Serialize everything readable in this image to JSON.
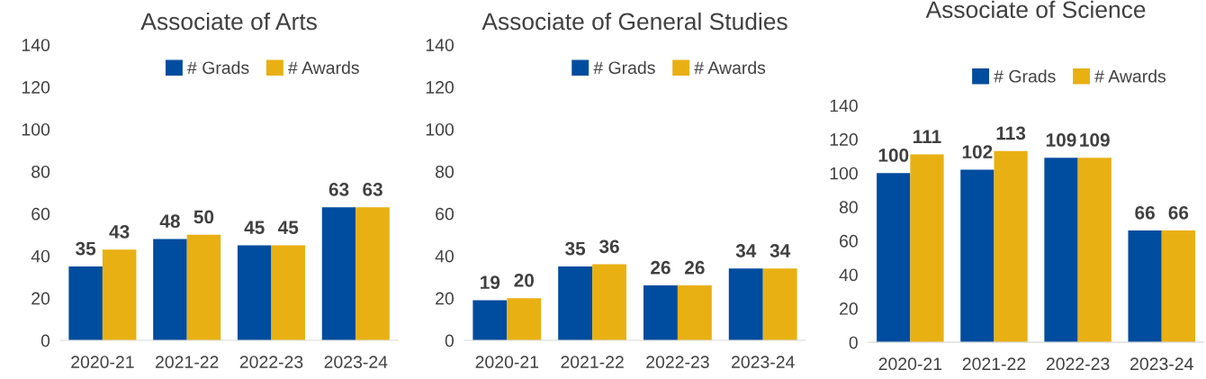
{
  "chart_data": [
    {
      "type": "bar",
      "title": "Associate of Arts",
      "categories": [
        "2020-21",
        "2021-22",
        "2022-23",
        "2023-24"
      ],
      "series": [
        {
          "name": "# Grads",
          "color": "#004c9e",
          "values": [
            35,
            48,
            45,
            63
          ]
        },
        {
          "name": "# Awards",
          "color": "#e8b013",
          "values": [
            43,
            50,
            45,
            63
          ]
        }
      ],
      "ylim": [
        0,
        140
      ],
      "yticks": [
        0,
        20,
        40,
        60,
        80,
        100,
        120,
        140
      ],
      "data_labels": true,
      "legend": "top",
      "grid": false
    },
    {
      "type": "bar",
      "title": "Associate of General Studies",
      "categories": [
        "2020-21",
        "2021-22",
        "2022-23",
        "2023-24"
      ],
      "series": [
        {
          "name": "# Grads",
          "color": "#004c9e",
          "values": [
            19,
            35,
            26,
            34
          ]
        },
        {
          "name": "# Awards",
          "color": "#e8b013",
          "values": [
            20,
            36,
            26,
            34
          ]
        }
      ],
      "ylim": [
        0,
        140
      ],
      "yticks": [
        0,
        20,
        40,
        60,
        80,
        100,
        120,
        140
      ],
      "data_labels": true,
      "legend": "top",
      "grid": false
    },
    {
      "type": "bar",
      "title": "Associate of Science",
      "categories": [
        "2020-21",
        "2021-22",
        "2022-23",
        "2023-24"
      ],
      "series": [
        {
          "name": "# Grads",
          "color": "#004c9e",
          "values": [
            100,
            102,
            109,
            66
          ]
        },
        {
          "name": "# Awards",
          "color": "#e8b013",
          "values": [
            111,
            113,
            109,
            66
          ]
        }
      ],
      "ylim": [
        0,
        140
      ],
      "yticks": [
        0,
        20,
        40,
        60,
        80,
        100,
        120,
        140
      ],
      "data_labels": true,
      "legend": "top",
      "grid": false
    }
  ]
}
